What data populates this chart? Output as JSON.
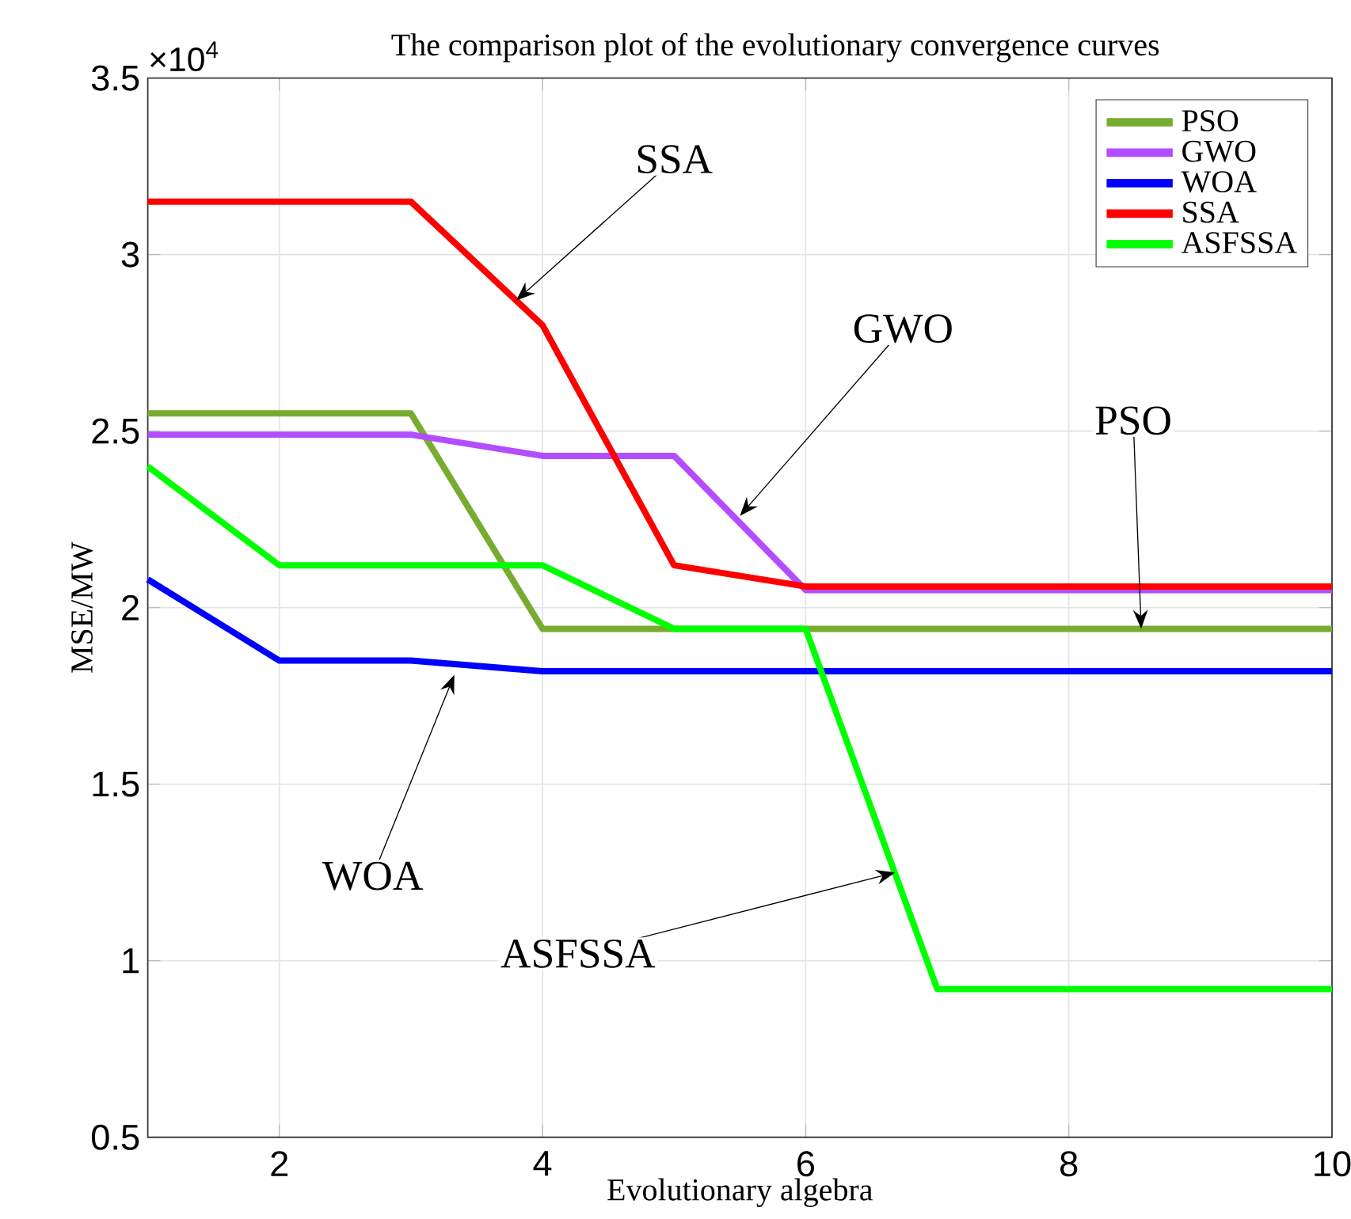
{
  "chart_data": {
    "type": "line",
    "title": "The comparison plot of the evolutionary convergence curves",
    "xlabel": "Evolutionary algebra",
    "ylabel": "MSE/MW",
    "x": [
      1,
      2,
      3,
      4,
      5,
      6,
      7,
      8,
      9,
      10
    ],
    "series": [
      {
        "name": "PSO",
        "color": "#77ac30",
        "values": [
          2.55,
          2.55,
          2.55,
          1.94,
          1.94,
          1.94,
          1.94,
          1.94,
          1.94,
          1.94
        ]
      },
      {
        "name": "GWO",
        "color": "#b34dff",
        "values": [
          2.49,
          2.49,
          2.49,
          2.43,
          2.43,
          2.05,
          2.05,
          2.05,
          2.05,
          2.05
        ]
      },
      {
        "name": "WOA",
        "color": "#0000ff",
        "values": [
          2.08,
          1.85,
          1.85,
          1.82,
          1.82,
          1.82,
          1.82,
          1.82,
          1.82,
          1.82
        ]
      },
      {
        "name": "SSA",
        "color": "#ff0000",
        "values": [
          3.15,
          3.15,
          3.15,
          2.8,
          2.12,
          2.06,
          2.06,
          2.06,
          2.06,
          2.06
        ]
      },
      {
        "name": "ASFSSA",
        "color": "#00ff00",
        "values": [
          2.4,
          2.12,
          2.12,
          2.12,
          1.94,
          1.94,
          0.92,
          0.92,
          0.92,
          0.92
        ]
      }
    ],
    "xlim": [
      1,
      10
    ],
    "ylim": [
      0.5,
      3.5
    ],
    "xticks": [
      2,
      4,
      6,
      8,
      10
    ],
    "yticks": [
      0.5,
      1,
      1.5,
      2,
      2.5,
      3,
      3.5
    ],
    "grid": true,
    "legend": "top right",
    "marker": "none",
    "line_style": "solid",
    "annotations": [
      "×10$^{4}$",
      {
        "text": "SSA",
        "x": 3.8,
        "y": 2.87
      },
      {
        "text": "GWO",
        "x": 5.5,
        "y": 2.26
      },
      {
        "text": "PSO",
        "x": 8.55,
        "y": 1.94
      },
      {
        "text": "WOA",
        "x": 3.33,
        "y": 1.81
      },
      {
        "text": "ASFSSA",
        "x": 6.68,
        "y": 1.25
      }
    ]
  }
}
